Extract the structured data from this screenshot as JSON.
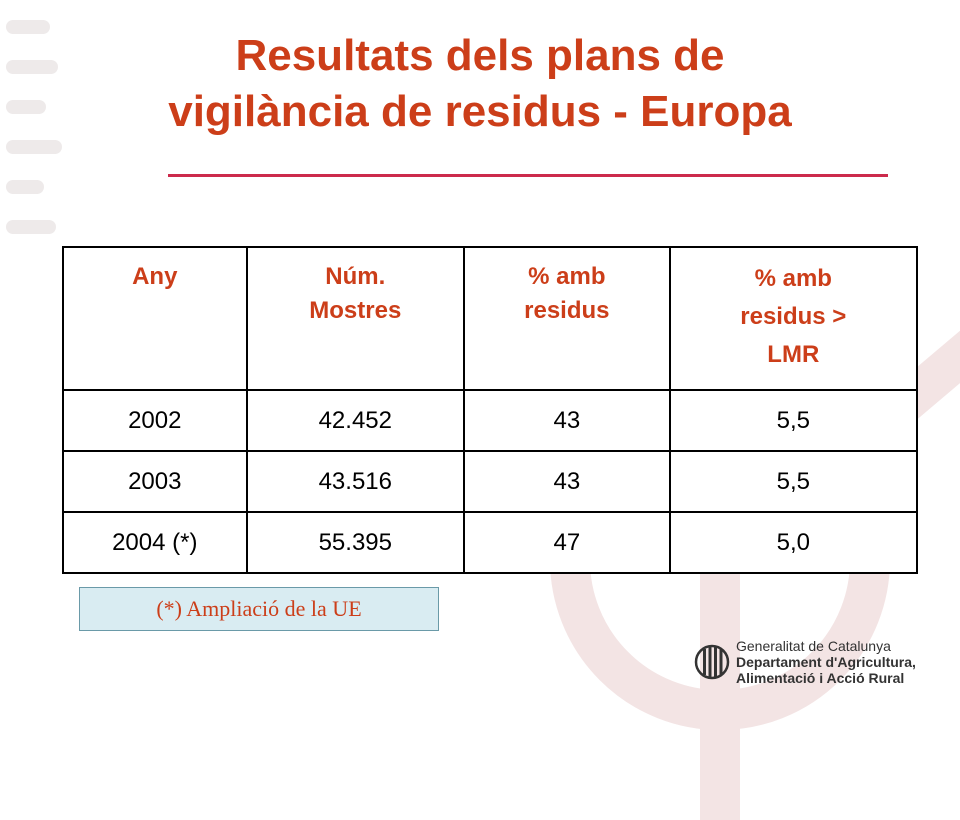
{
  "slide": {
    "title_line1": "Resultats dels plans de",
    "title_line2": "vigilància de residus - Europa"
  },
  "table": {
    "headers": [
      {
        "line1": "Any",
        "line2": "",
        "line3": ""
      },
      {
        "line1": "Núm.",
        "line2": "Mostres",
        "line3": ""
      },
      {
        "line1": "% amb",
        "line2": "residus",
        "line3": ""
      },
      {
        "line1": "% amb",
        "line2": "residus >",
        "line3": "LMR"
      }
    ],
    "rows": [
      [
        "2002",
        "42.452",
        "43",
        "5,5"
      ],
      [
        "2003",
        "43.516",
        "43",
        "5,5"
      ],
      [
        "2004 (*)",
        "55.395",
        "47",
        "5,0"
      ]
    ]
  },
  "footnote": "(*) Ampliació de la UE",
  "brand": {
    "line1": "Generalitat de Catalunya",
    "line2": "Departament d'Agricultura,",
    "line3": "Alimentació i Acció Rural"
  },
  "colors": {
    "title": "#cc3e19",
    "rule": "#cc2a4c",
    "footnote_bg": "#d9ecf2"
  }
}
